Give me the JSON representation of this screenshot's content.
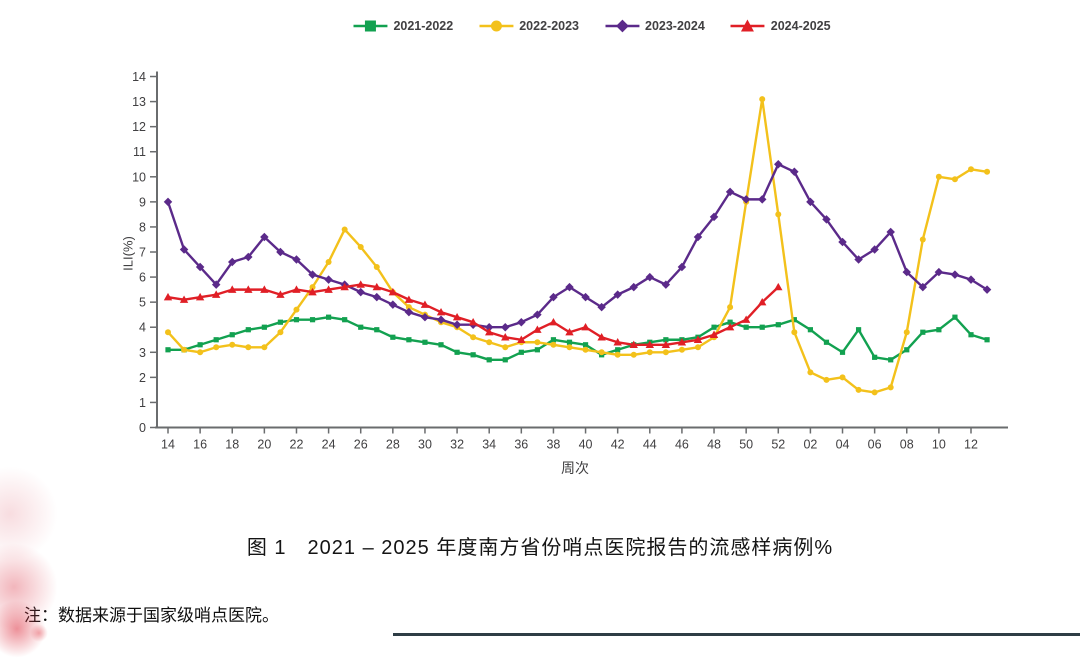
{
  "figure": {
    "title": "图 1　2021 – 2025 年度南方省份哨点医院报告的流感样病例%",
    "note": "注：数据来源于国家级哨点医院。"
  },
  "chart_data": {
    "type": "line",
    "title": "图 1　2021 – 2025 年度南方省份哨点医院报告的流感样病例%",
    "grid": false,
    "legend_position": "top",
    "axis_color": "#6a6c6e",
    "text_color": "#414042",
    "x_axis": {
      "label": "周次",
      "tick_labels": [
        "14",
        "16",
        "18",
        "20",
        "22",
        "24",
        "26",
        "28",
        "30",
        "32",
        "34",
        "36",
        "38",
        "40",
        "42",
        "44",
        "46",
        "48",
        "50",
        "52",
        "02",
        "04",
        "06",
        "08",
        "10",
        "12"
      ]
    },
    "y_axis": {
      "label": "ILI(%)",
      "min": 0,
      "max": 14,
      "tick_step": 1
    },
    "categories": [
      "14",
      "15",
      "16",
      "17",
      "18",
      "19",
      "20",
      "21",
      "22",
      "23",
      "24",
      "25",
      "26",
      "27",
      "28",
      "29",
      "30",
      "31",
      "32",
      "33",
      "34",
      "35",
      "36",
      "37",
      "38",
      "39",
      "40",
      "41",
      "42",
      "43",
      "44",
      "45",
      "46",
      "47",
      "48",
      "49",
      "50",
      "51",
      "52",
      "01",
      "02",
      "03",
      "04",
      "05",
      "06",
      "07",
      "08",
      "09",
      "10",
      "11",
      "12",
      "13"
    ],
    "series": [
      {
        "name": "2021-2022",
        "color": "#12a150",
        "marker": "square",
        "values": [
          3.1,
          3.1,
          3.3,
          3.5,
          3.7,
          3.9,
          4.0,
          4.2,
          4.3,
          4.3,
          4.4,
          4.3,
          4.0,
          3.9,
          3.6,
          3.5,
          3.4,
          3.3,
          3.0,
          2.9,
          2.7,
          2.7,
          3.0,
          3.1,
          3.5,
          3.4,
          3.3,
          2.9,
          3.1,
          3.3,
          3.4,
          3.5,
          3.5,
          3.6,
          4.0,
          4.2,
          4.0,
          4.0,
          4.1,
          4.3,
          3.9,
          3.4,
          3.0,
          3.9,
          2.8,
          2.7,
          3.1,
          3.8,
          3.9,
          4.4,
          3.7,
          3.5
        ]
      },
      {
        "name": "2022-2023",
        "color": "#f3c11b",
        "marker": "circle",
        "values": [
          3.8,
          3.1,
          3.0,
          3.2,
          3.3,
          3.2,
          3.2,
          3.8,
          4.7,
          5.6,
          6.6,
          7.9,
          7.2,
          6.4,
          5.4,
          4.8,
          4.5,
          4.2,
          4.0,
          3.6,
          3.4,
          3.2,
          3.4,
          3.4,
          3.3,
          3.2,
          3.1,
          3.0,
          2.9,
          2.9,
          3.0,
          3.0,
          3.1,
          3.2,
          3.6,
          4.8,
          9.0,
          13.1,
          8.5,
          3.8,
          2.2,
          1.9,
          2.0,
          1.5,
          1.4,
          1.6,
          3.8,
          7.5,
          10.0,
          9.9,
          10.3,
          10.2
        ]
      },
      {
        "name": "2023-2024",
        "color": "#5b2a8a",
        "marker": "diamond",
        "values": [
          9.0,
          7.1,
          6.4,
          5.7,
          6.6,
          6.8,
          7.6,
          7.0,
          6.7,
          6.1,
          5.9,
          5.7,
          5.4,
          5.2,
          4.9,
          4.6,
          4.4,
          4.3,
          4.1,
          4.1,
          4.0,
          4.0,
          4.2,
          4.5,
          5.2,
          5.6,
          5.2,
          4.8,
          5.3,
          5.6,
          6.0,
          5.7,
          6.4,
          7.6,
          8.4,
          9.4,
          9.1,
          9.1,
          10.5,
          10.2,
          9.0,
          8.3,
          7.4,
          6.7,
          7.1,
          7.8,
          6.2,
          5.6,
          6.2,
          6.1,
          5.9,
          5.5
        ]
      },
      {
        "name": "2024-2025",
        "color": "#e01f26",
        "marker": "triangle",
        "values": [
          5.2,
          5.1,
          5.2,
          5.3,
          5.5,
          5.5,
          5.5,
          5.3,
          5.5,
          5.4,
          5.5,
          5.6,
          5.7,
          5.6,
          5.4,
          5.1,
          4.9,
          4.6,
          4.4,
          4.2,
          3.8,
          3.6,
          3.5,
          3.9,
          4.2,
          3.8,
          4.0,
          3.6,
          3.4,
          3.3,
          3.3,
          3.3,
          3.4,
          3.5,
          3.7,
          4.0,
          4.3,
          5.0,
          5.6
        ]
      }
    ]
  }
}
